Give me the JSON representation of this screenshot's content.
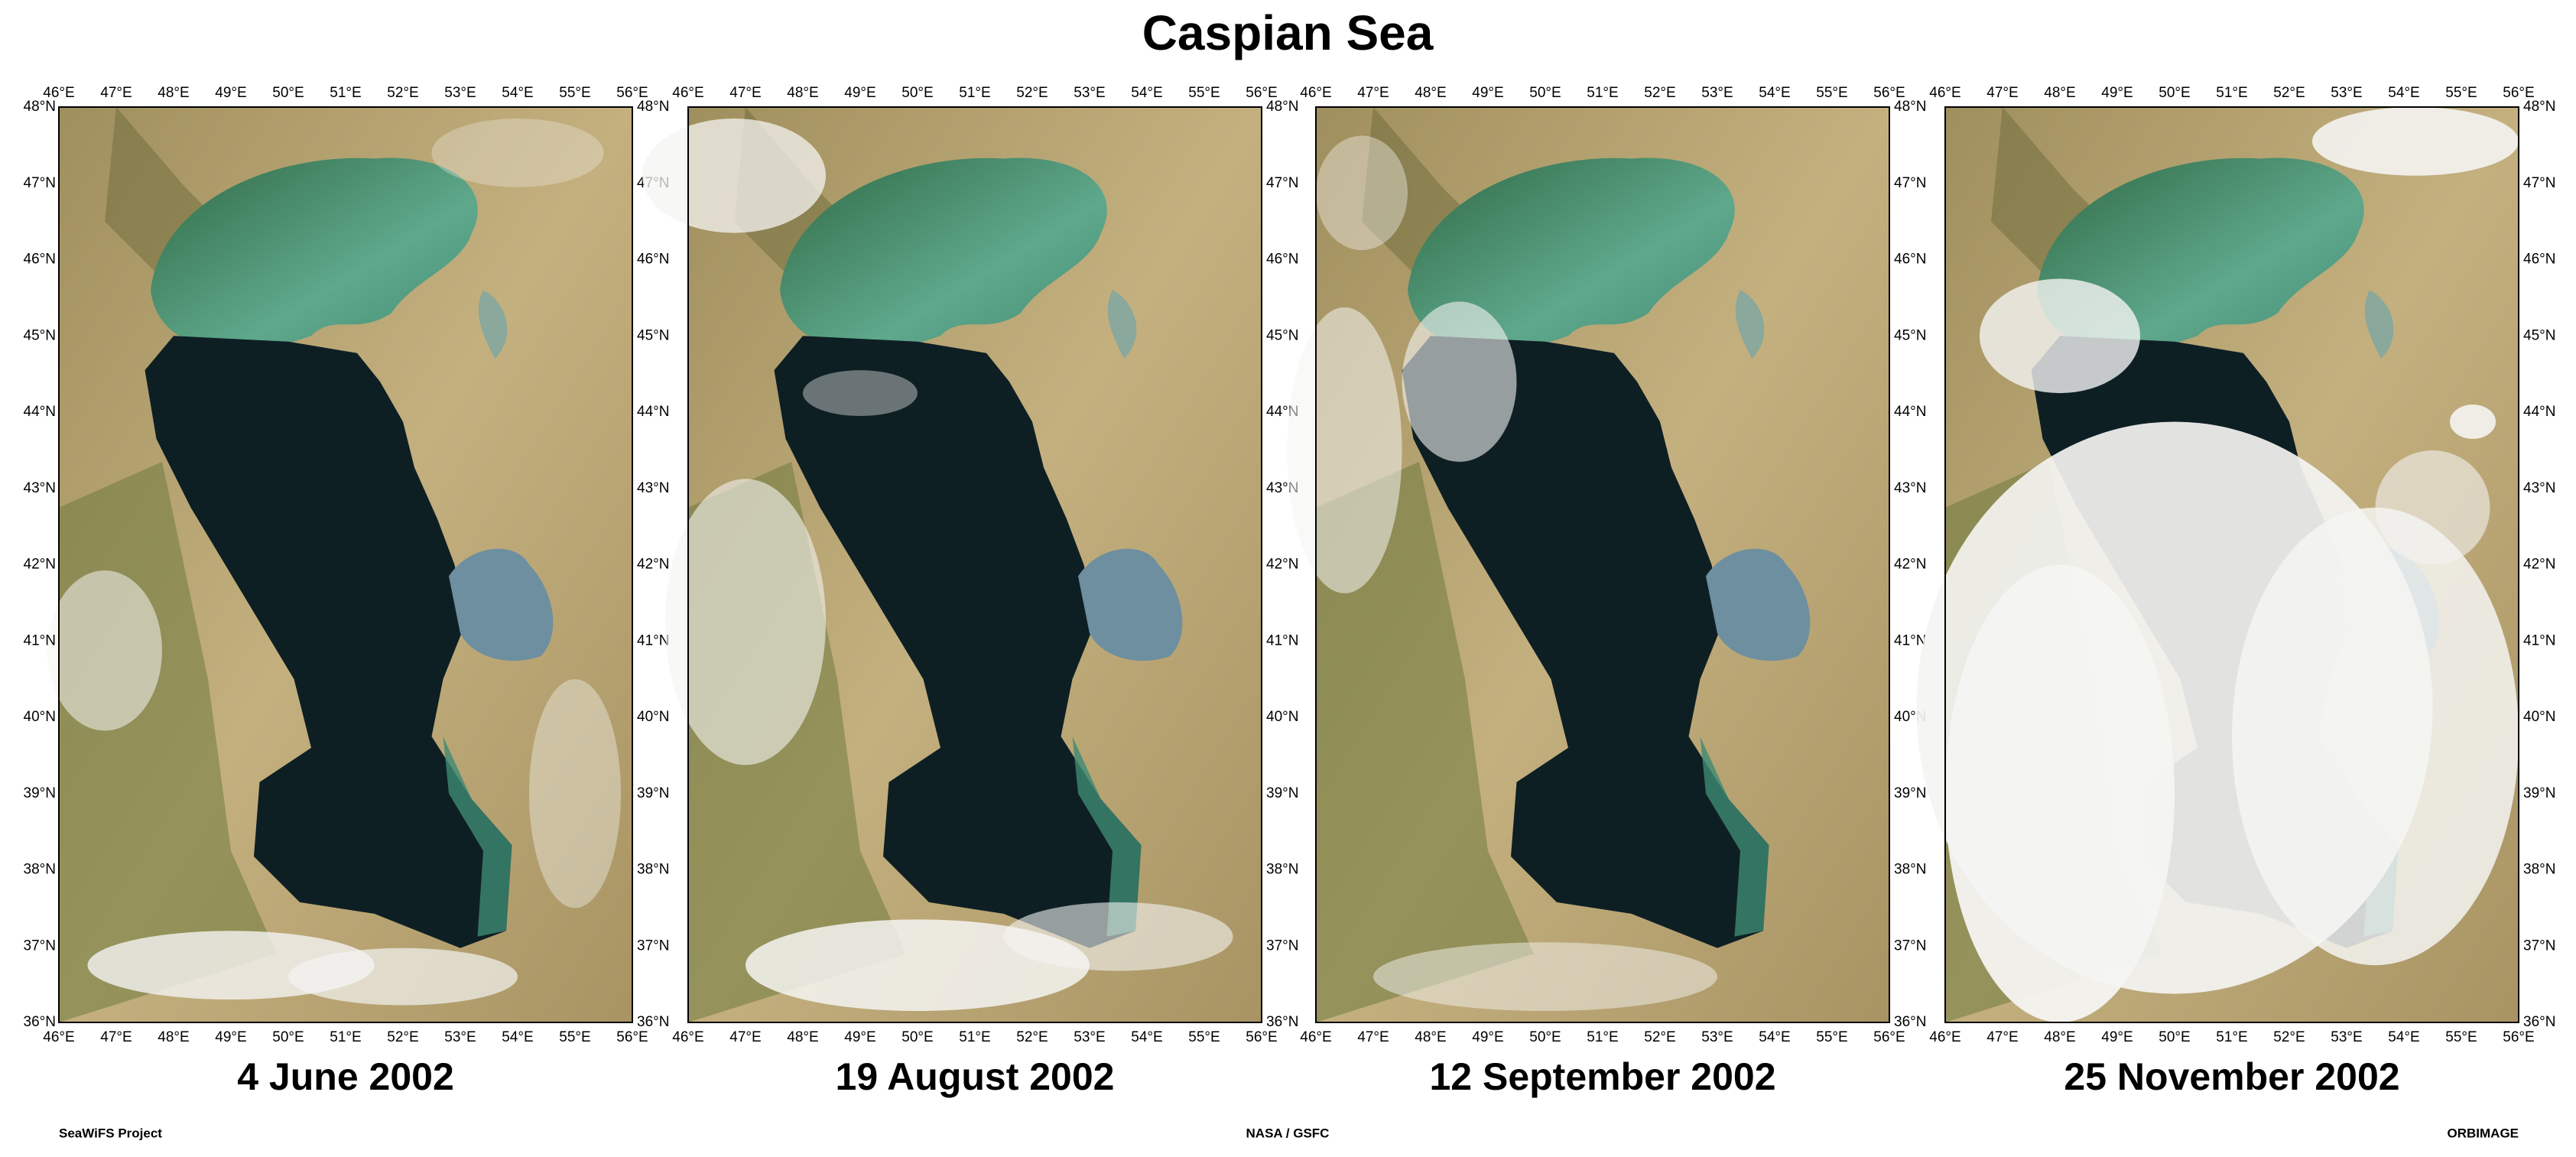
{
  "title": "Caspian Sea",
  "lon_labels": [
    "46°E",
    "47°E",
    "48°E",
    "49°E",
    "50°E",
    "51°E",
    "52°E",
    "53°E",
    "54°E",
    "55°E",
    "56°E"
  ],
  "lat_labels": [
    "48°N",
    "47°N",
    "46°N",
    "45°N",
    "44°N",
    "43°N",
    "42°N",
    "41°N",
    "40°N",
    "39°N",
    "38°N",
    "37°N",
    "36°N"
  ],
  "panels": [
    {
      "date": "4 June 2002"
    },
    {
      "date": "19 August 2002"
    },
    {
      "date": "12 September 2002"
    },
    {
      "date": "25 November 2002"
    }
  ],
  "footer": {
    "left": "SeaWiFS Project",
    "center": "NASA / GSFC",
    "right": "ORBIMAGE"
  }
}
